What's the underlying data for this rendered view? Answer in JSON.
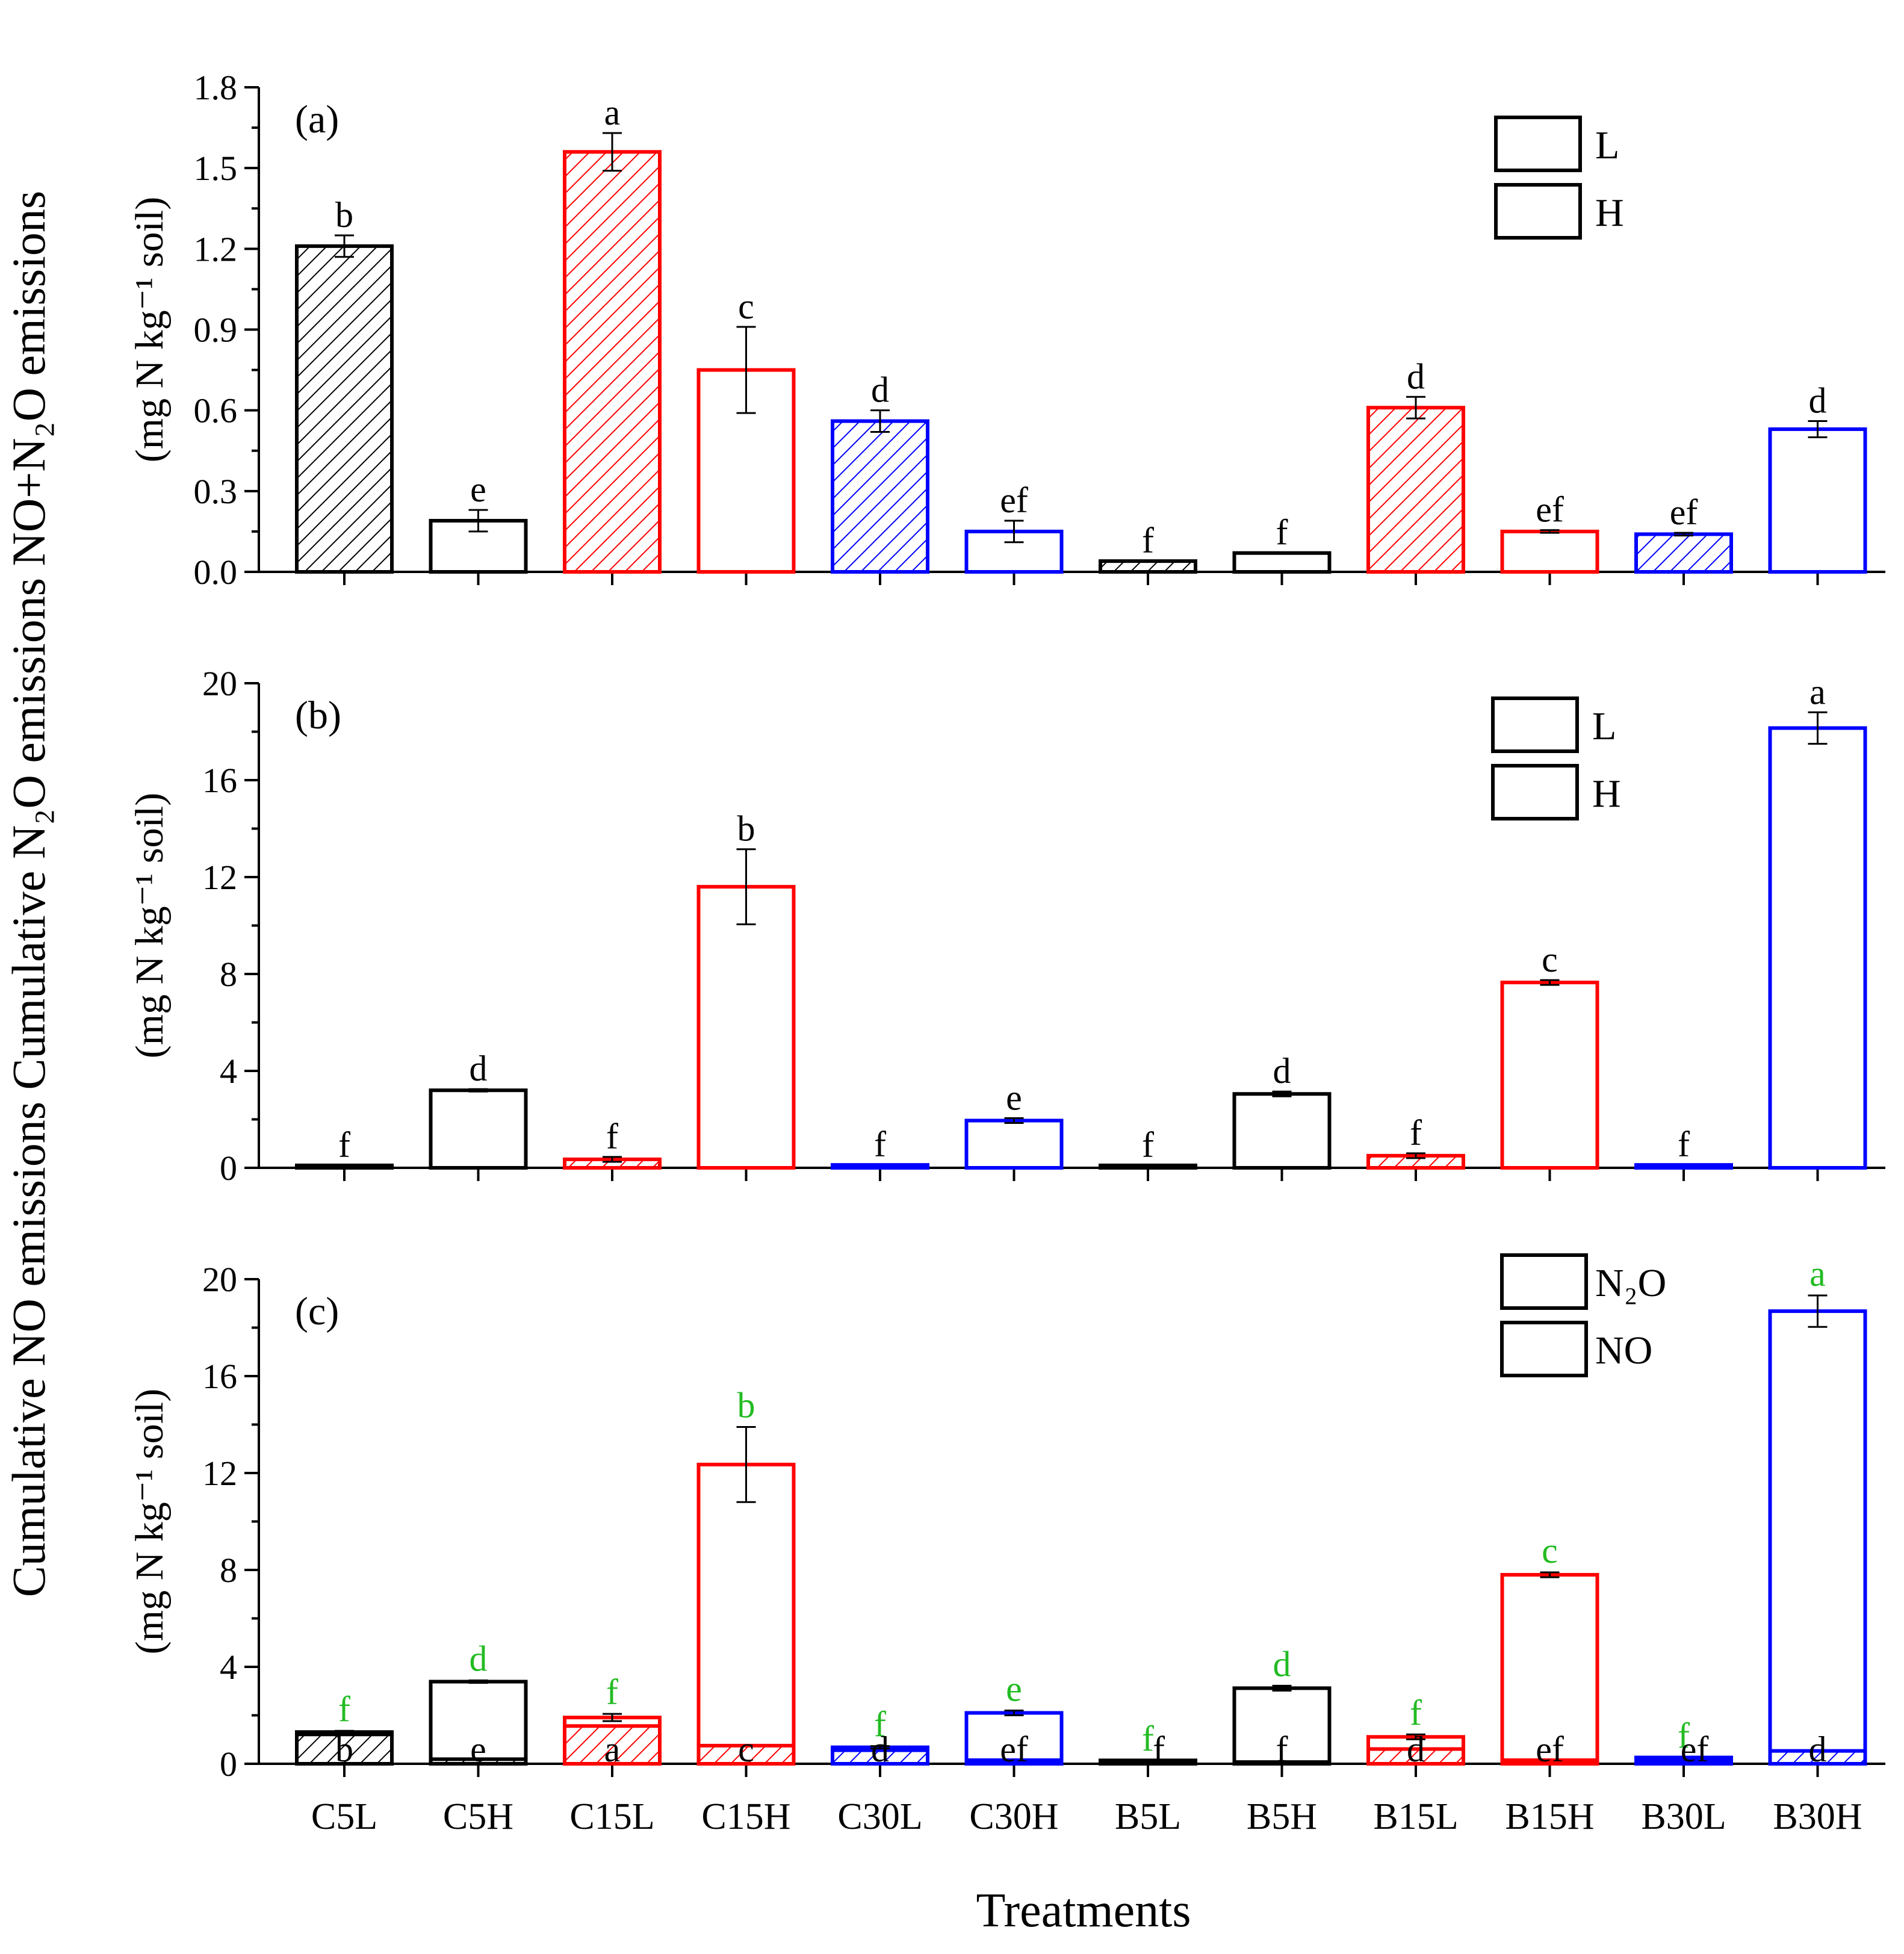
{
  "figure": {
    "shared_ylabel": "Cumulative NO emissions Cumulative N₂O emissions NO+N₂O emissions",
    "xlabel": "Treatments"
  },
  "chart_data": [
    {
      "id": "a",
      "type": "bar",
      "panel_label": "(a)",
      "ylabel": "(mg N kg⁻¹ soil)",
      "ylim": [
        0,
        1.8
      ],
      "yticks": [
        "0.0",
        "0.3",
        "0.6",
        "0.9",
        "1.2",
        "1.5",
        "1.8"
      ],
      "categories": [
        "C5L",
        "C5H",
        "C15L",
        "C15H",
        "C30L",
        "C30H",
        "B5L",
        "B5H",
        "B15L",
        "B15H",
        "B30L",
        "B30H"
      ],
      "values": [
        1.21,
        0.19,
        1.56,
        0.75,
        0.56,
        0.15,
        0.04,
        0.07,
        0.61,
        0.15,
        0.14,
        0.53
      ],
      "errors": [
        0.04,
        0.04,
        0.07,
        0.16,
        0.04,
        0.04,
        0.0,
        0.0,
        0.04,
        0.005,
        0.005,
        0.03
      ],
      "letters": [
        "b",
        "e",
        "a",
        "c",
        "d",
        "ef",
        "f",
        "f",
        "d",
        "ef",
        "ef",
        "d"
      ],
      "hatched": [
        true,
        false,
        true,
        false,
        true,
        false,
        true,
        false,
        true,
        false,
        true,
        false
      ],
      "colors": [
        "#000000",
        "#000000",
        "#ff0000",
        "#ff0000",
        "#0000ff",
        "#0000ff",
        "#000000",
        "#000000",
        "#ff0000",
        "#ff0000",
        "#0000ff",
        "#0000ff"
      ],
      "legend": [
        "L",
        "H"
      ]
    },
    {
      "id": "b",
      "type": "bar",
      "panel_label": "(b)",
      "ylabel": "(mg N kg⁻¹ soil)",
      "ylim": [
        0,
        20
      ],
      "yticks": [
        "0",
        "4",
        "8",
        "12",
        "16",
        "20"
      ],
      "categories": [
        "C5L",
        "C5H",
        "C15L",
        "C15H",
        "C30L",
        "C30H",
        "B5L",
        "B5H",
        "B15L",
        "B15H",
        "B30L",
        "B30H"
      ],
      "values": [
        0.1,
        3.2,
        0.35,
        11.6,
        0.12,
        1.95,
        0.1,
        3.05,
        0.5,
        7.65,
        0.12,
        18.15
      ],
      "errors": [
        0.0,
        0.05,
        0.1,
        1.55,
        0.0,
        0.1,
        0.0,
        0.1,
        0.1,
        0.1,
        0.0,
        0.65
      ],
      "letters": [
        "f",
        "d",
        "f",
        "b",
        "f",
        "e",
        "f",
        "d",
        "f",
        "c",
        "f",
        "a"
      ],
      "hatched": [
        true,
        false,
        true,
        false,
        true,
        false,
        true,
        false,
        true,
        false,
        true,
        false
      ],
      "colors": [
        "#000000",
        "#000000",
        "#ff0000",
        "#ff0000",
        "#0000ff",
        "#0000ff",
        "#000000",
        "#000000",
        "#ff0000",
        "#ff0000",
        "#0000ff",
        "#0000ff"
      ],
      "legend": [
        "L",
        "H"
      ]
    },
    {
      "id": "c",
      "type": "stacked-bar",
      "panel_label": "(c)",
      "ylabel": "(mg N kg⁻¹ soil)",
      "ylim": [
        0,
        20
      ],
      "yticks": [
        "0",
        "4",
        "8",
        "12",
        "16",
        "20"
      ],
      "categories": [
        "C5L",
        "C5H",
        "C15L",
        "C15H",
        "C30L",
        "C30H",
        "B5L",
        "B5H",
        "B15L",
        "B15H",
        "B30L",
        "B30H"
      ],
      "series": [
        {
          "name": "NO",
          "values": [
            1.21,
            0.19,
            1.56,
            0.75,
            0.56,
            0.15,
            0.04,
            0.07,
            0.61,
            0.15,
            0.14,
            0.53
          ]
        },
        {
          "name": "N₂O",
          "values": [
            0.1,
            3.2,
            0.35,
            11.6,
            0.12,
            1.95,
            0.1,
            3.05,
            0.5,
            7.65,
            0.12,
            18.15
          ]
        }
      ],
      "totals": [
        1.31,
        3.39,
        1.91,
        12.35,
        0.68,
        2.1,
        0.14,
        3.12,
        1.11,
        7.8,
        0.26,
        18.68
      ],
      "errors": [
        0.05,
        0.05,
        0.15,
        1.55,
        0.05,
        0.1,
        0.0,
        0.1,
        0.1,
        0.1,
        0.0,
        0.65
      ],
      "total_letters": [
        "f",
        "d",
        "f",
        "b",
        "f",
        "e",
        "f",
        "d",
        "f",
        "c",
        "f",
        "a"
      ],
      "no_letters": [
        "b",
        "e",
        "a",
        "c",
        "d",
        "ef",
        "f",
        "f",
        "d",
        "ef",
        "ef",
        "d"
      ],
      "colors": [
        "#000000",
        "#000000",
        "#ff0000",
        "#ff0000",
        "#0000ff",
        "#0000ff",
        "#000000",
        "#000000",
        "#ff0000",
        "#ff0000",
        "#0000ff",
        "#0000ff"
      ],
      "letter_color": "#22bb22",
      "legend": [
        "N₂O",
        "NO"
      ]
    }
  ]
}
